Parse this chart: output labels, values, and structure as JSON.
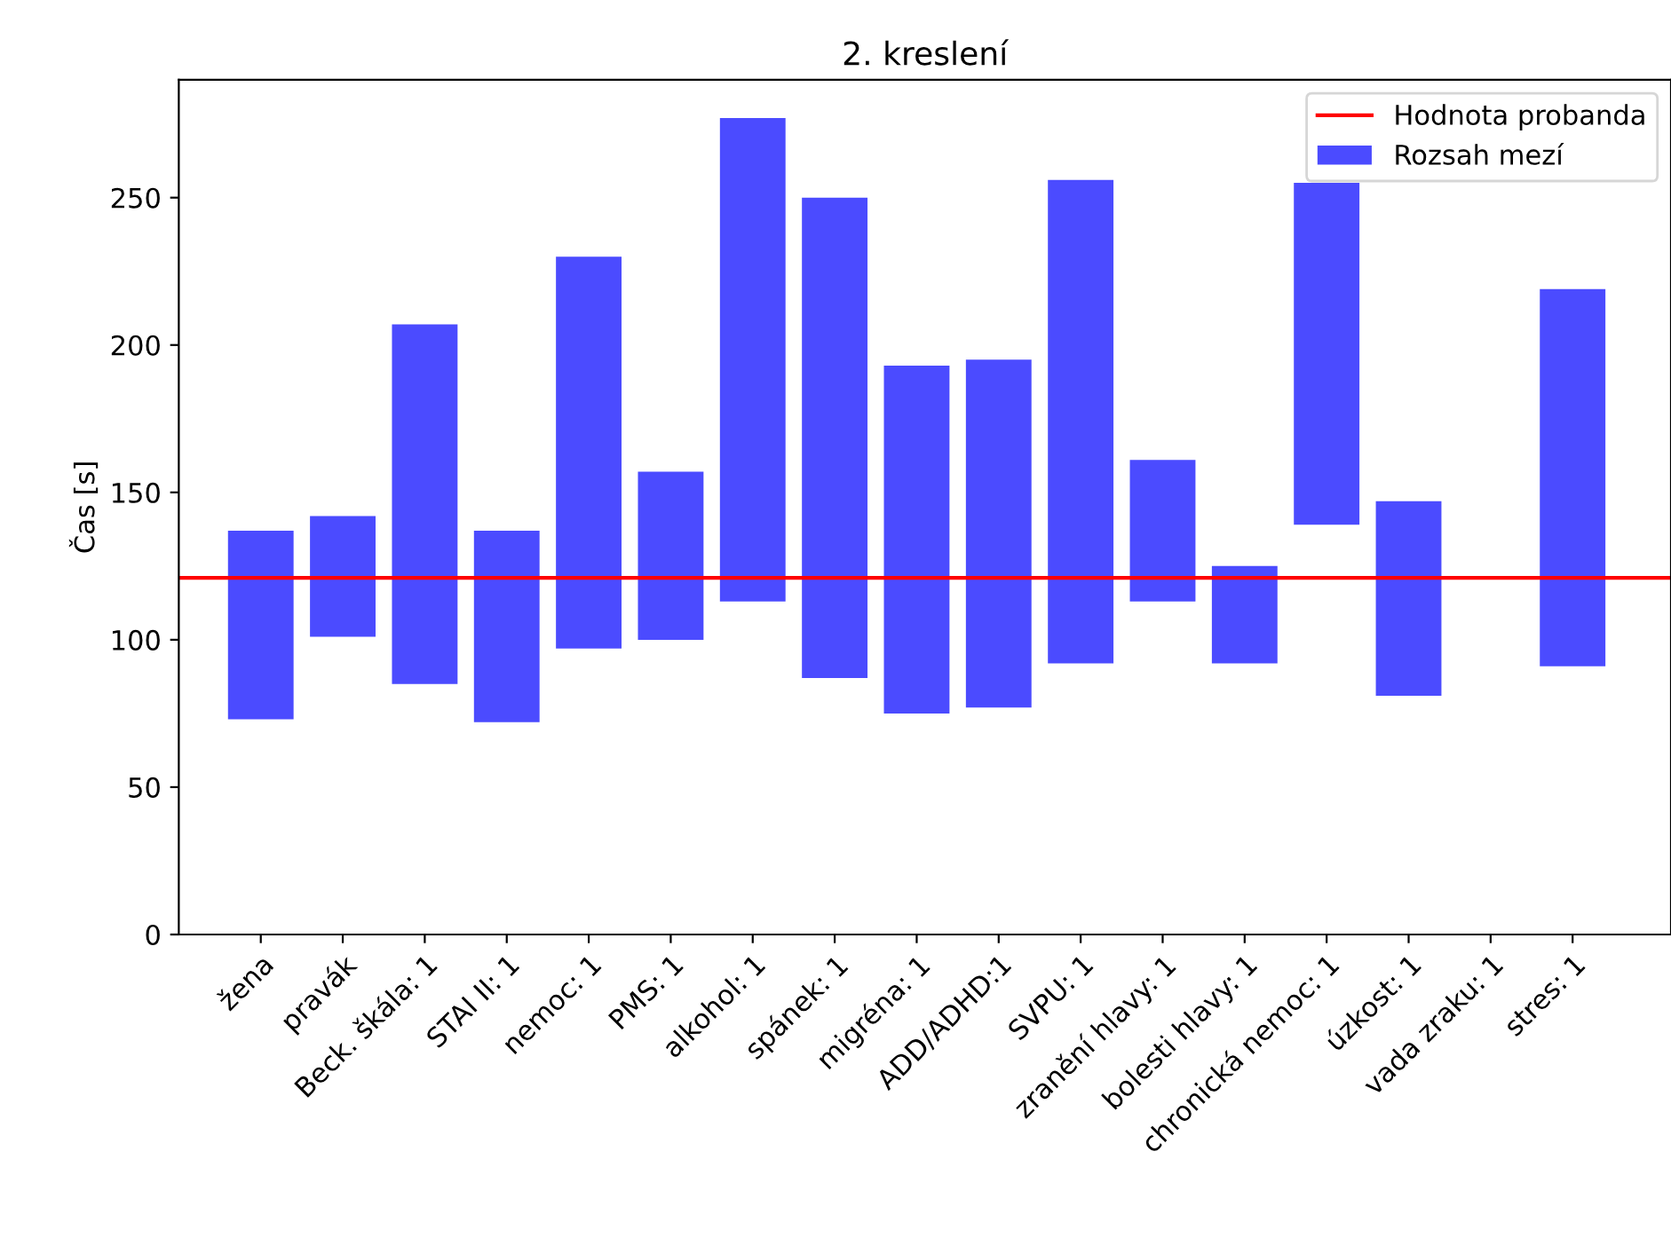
{
  "chart_data": {
    "type": "bar",
    "title": "2. kreslení",
    "ylabel": "Čas [s]",
    "categories": [
      "žena",
      "pravák",
      "Beck. škála: 1",
      "STAI II: 1",
      "nemoc: 1",
      "PMS: 1",
      "alkohol: 1",
      "spánek: 1",
      "migréna: 1",
      "ADD/ADHD:1",
      "SVPU: 1",
      "zranění hlavy: 1",
      "bolesti hlavy: 1",
      "chronická nemoc: 1",
      "úzkost: 1",
      "vada zraku: 1",
      "stres: 1"
    ],
    "series": [
      {
        "name": "Rozsah mezí",
        "color": "#4b4bff",
        "base": [
          73,
          101,
          85,
          72,
          97,
          100,
          113,
          87,
          75,
          77,
          92,
          113,
          92,
          139,
          81,
          null,
          91
        ],
        "values": [
          64,
          41,
          122,
          65,
          133,
          57,
          164,
          163,
          118,
          118,
          164,
          48,
          33,
          116,
          66,
          null,
          128
        ]
      }
    ],
    "ylim": [
      0,
      290
    ],
    "yticks": [
      0,
      50,
      100,
      150,
      200,
      250
    ],
    "ref_lines": [
      {
        "axis": "y",
        "value": 121,
        "label": "Hodnota probanda",
        "color": "#ff0000"
      }
    ],
    "grid": false,
    "legend": "top right"
  }
}
